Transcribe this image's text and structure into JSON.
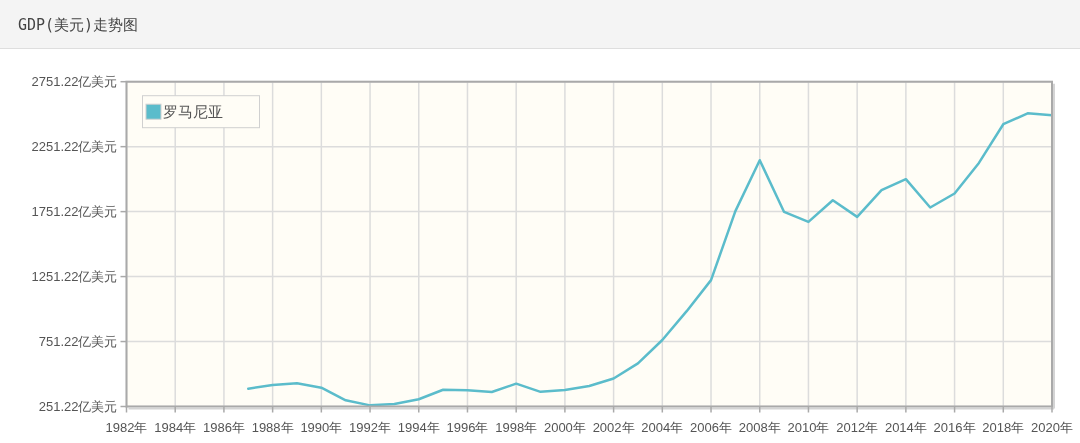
{
  "chart_data": {
    "type": "line",
    "title": "GDP(美元)走势图",
    "x": [
      1987,
      1988,
      1989,
      1990,
      1991,
      1992,
      1993,
      1994,
      1995,
      1996,
      1997,
      1998,
      1999,
      2000,
      2001,
      2002,
      2003,
      2004,
      2005,
      2006,
      2007,
      2008,
      2009,
      2010,
      2011,
      2012,
      2013,
      2014,
      2015,
      2016,
      2017,
      2018,
      2019,
      2020
    ],
    "series": [
      {
        "name": "罗马尼亚",
        "color": "#5bbccb",
        "values": [
          388,
          417,
          430,
          396,
          299,
          260,
          270,
          307,
          380,
          376,
          363,
          427,
          364,
          378,
          409,
          467,
          583,
          763,
          985,
          1224,
          1755,
          2147,
          1749,
          1672,
          1839,
          1711,
          1916,
          2001,
          1783,
          1891,
          2126,
          2424,
          2508,
          2493
        ]
      }
    ],
    "xlim": [
      1982,
      2020
    ],
    "xticks": [
      {
        "value": 1982,
        "label": "1982年"
      },
      {
        "value": 1984,
        "label": "1984年"
      },
      {
        "value": 1986,
        "label": "1986年"
      },
      {
        "value": 1988,
        "label": "1988年"
      },
      {
        "value": 1990,
        "label": "1990年"
      },
      {
        "value": 1992,
        "label": "1992年"
      },
      {
        "value": 1994,
        "label": "1994年"
      },
      {
        "value": 1996,
        "label": "1996年"
      },
      {
        "value": 1998,
        "label": "1998年"
      },
      {
        "value": 2000,
        "label": "2000年"
      },
      {
        "value": 2002,
        "label": "2002年"
      },
      {
        "value": 2004,
        "label": "2004年"
      },
      {
        "value": 2006,
        "label": "2006年"
      },
      {
        "value": 2008,
        "label": "2008年"
      },
      {
        "value": 2010,
        "label": "2010年"
      },
      {
        "value": 2012,
        "label": "2012年"
      },
      {
        "value": 2014,
        "label": "2014年"
      },
      {
        "value": 2016,
        "label": "2016年"
      },
      {
        "value": 2018,
        "label": "2018年"
      },
      {
        "value": 2020,
        "label": "2020年"
      }
    ],
    "ylim": [
      251.22,
      2751.22
    ],
    "yticks": [
      {
        "value": 251.22,
        "label": "251.22亿美元"
      },
      {
        "value": 751.22,
        "label": "751.22亿美元"
      },
      {
        "value": 1251.22,
        "label": "1251.22亿美元"
      },
      {
        "value": 1751.22,
        "label": "1751.22亿美元"
      },
      {
        "value": 2251.22,
        "label": "2251.22亿美元"
      },
      {
        "value": 2751.22,
        "label": "2751.22亿美元"
      }
    ],
    "grid": true,
    "legend": "top left",
    "marker": "none",
    "line_style": "solid"
  }
}
